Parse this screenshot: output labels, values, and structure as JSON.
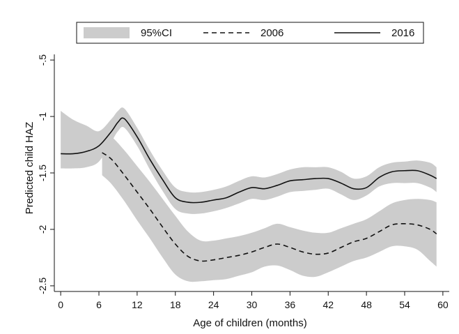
{
  "chart_data": {
    "type": "line",
    "xlabel": "Age of children (months)",
    "ylabel": "Predicted child HAZ",
    "xlim": [
      -1,
      61
    ],
    "ylim": [
      -2.55,
      -0.45
    ],
    "x_ticks": [
      0,
      6,
      12,
      18,
      24,
      30,
      36,
      42,
      48,
      54,
      60
    ],
    "x_tick_labels": [
      "0",
      "6",
      "12",
      "18",
      "24",
      "30",
      "36",
      "42",
      "48",
      "54",
      "60"
    ],
    "y_ticks": [
      -2.5,
      -2,
      -1.5,
      -1,
      -0.5
    ],
    "y_tick_labels": [
      "-2.5",
      "-2",
      "-1.5",
      "-1",
      "-.5"
    ],
    "legend": {
      "position": "top",
      "entries": [
        {
          "label": "95%CI",
          "style": "band"
        },
        {
          "label": "2006",
          "style": "dashed"
        },
        {
          "label": "2016",
          "style": "solid"
        }
      ]
    },
    "grid": false,
    "colors": {
      "band": "#cccccc",
      "line": "#111111"
    },
    "series": [
      {
        "name": "2006",
        "style": "dashed",
        "x": [
          6.5,
          8,
          10,
          12,
          14,
          16,
          18,
          20,
          22,
          24,
          26,
          28,
          30,
          32,
          34,
          36,
          38,
          40,
          42,
          44,
          46,
          48,
          50,
          52,
          54,
          56,
          58,
          59
        ],
        "y": [
          -1.32,
          -1.38,
          -1.52,
          -1.67,
          -1.82,
          -1.98,
          -2.13,
          -2.24,
          -2.28,
          -2.27,
          -2.25,
          -2.23,
          -2.2,
          -2.16,
          -2.13,
          -2.16,
          -2.2,
          -2.22,
          -2.21,
          -2.16,
          -2.11,
          -2.08,
          -2.02,
          -1.96,
          -1.95,
          -1.96,
          -2.0,
          -2.04
        ],
        "ci_lower": [
          -1.52,
          -1.6,
          -1.75,
          -1.92,
          -2.08,
          -2.25,
          -2.4,
          -2.46,
          -2.46,
          -2.45,
          -2.44,
          -2.41,
          -2.38,
          -2.33,
          -2.32,
          -2.36,
          -2.41,
          -2.42,
          -2.38,
          -2.33,
          -2.28,
          -2.25,
          -2.2,
          -2.15,
          -2.15,
          -2.18,
          -2.28,
          -2.33
        ],
        "ci_upper": [
          -1.15,
          -1.18,
          -1.3,
          -1.44,
          -1.58,
          -1.73,
          -1.88,
          -2.02,
          -2.1,
          -2.1,
          -2.08,
          -2.06,
          -2.03,
          -1.99,
          -1.95,
          -1.98,
          -2.01,
          -2.03,
          -2.03,
          -1.99,
          -1.95,
          -1.91,
          -1.84,
          -1.77,
          -1.74,
          -1.73,
          -1.74,
          -1.76
        ]
      },
      {
        "name": "2016",
        "style": "solid",
        "x": [
          0,
          2,
          4,
          6,
          8,
          9,
          10,
          12,
          14,
          16,
          18,
          20,
          22,
          24,
          26,
          28,
          30,
          32,
          34,
          36,
          38,
          40,
          42,
          44,
          46,
          48,
          50,
          52,
          54,
          56,
          58,
          59
        ],
        "y": [
          -1.33,
          -1.33,
          -1.31,
          -1.26,
          -1.13,
          -1.05,
          -1.02,
          -1.18,
          -1.38,
          -1.56,
          -1.72,
          -1.76,
          -1.76,
          -1.74,
          -1.72,
          -1.67,
          -1.63,
          -1.64,
          -1.61,
          -1.57,
          -1.56,
          -1.55,
          -1.55,
          -1.59,
          -1.64,
          -1.63,
          -1.54,
          -1.49,
          -1.48,
          -1.48,
          -1.52,
          -1.55
        ],
        "ci_lower": [
          -1.46,
          -1.46,
          -1.45,
          -1.4,
          -1.22,
          -1.13,
          -1.1,
          -1.26,
          -1.47,
          -1.66,
          -1.82,
          -1.86,
          -1.86,
          -1.84,
          -1.81,
          -1.77,
          -1.73,
          -1.74,
          -1.71,
          -1.67,
          -1.66,
          -1.65,
          -1.64,
          -1.69,
          -1.74,
          -1.7,
          -1.62,
          -1.59,
          -1.59,
          -1.59,
          -1.63,
          -1.67
        ],
        "ci_upper": [
          -0.95,
          -1.03,
          -1.08,
          -1.13,
          -1.02,
          -0.95,
          -0.93,
          -1.1,
          -1.3,
          -1.48,
          -1.63,
          -1.67,
          -1.67,
          -1.65,
          -1.62,
          -1.57,
          -1.53,
          -1.54,
          -1.51,
          -1.47,
          -1.45,
          -1.45,
          -1.45,
          -1.49,
          -1.55,
          -1.53,
          -1.45,
          -1.41,
          -1.4,
          -1.39,
          -1.41,
          -1.45
        ]
      }
    ]
  }
}
